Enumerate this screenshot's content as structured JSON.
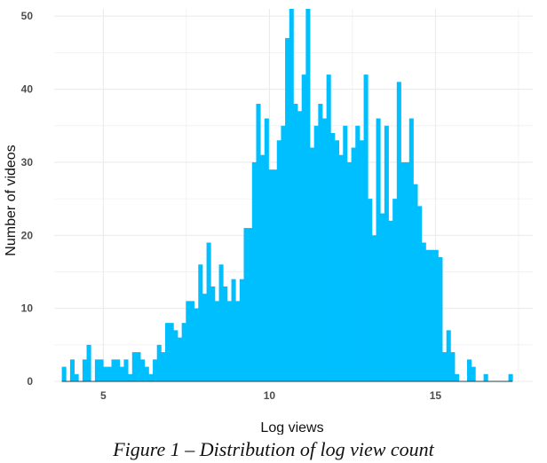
{
  "colors": {
    "bar": "#00bfff",
    "grid": "#ebebeb",
    "baseline": "#1f3f4a"
  },
  "caption": "Figure 1 – Distribution of log view count",
  "chart_data": {
    "type": "histogram",
    "xlabel": "Log views",
    "ylabel": "Number of videos",
    "x_ticks": [
      5,
      10,
      15
    ],
    "y_ticks": [
      0,
      10,
      20,
      30,
      40,
      50
    ],
    "xlim": [
      3.52,
      17.93
    ],
    "ylim": [
      0,
      51
    ],
    "grid": true,
    "bin_start": 3.75,
    "bin_width": 0.1245,
    "counts": [
      2,
      0,
      3,
      1,
      0,
      3,
      5,
      0,
      3,
      3,
      2,
      2,
      3,
      3,
      2,
      3,
      1,
      4,
      4,
      3,
      2,
      1,
      3,
      5,
      4,
      8,
      8,
      7,
      6,
      8,
      11,
      11,
      10,
      16,
      12,
      19,
      13,
      11,
      16,
      13,
      11,
      14,
      11,
      14,
      21,
      21,
      30,
      38,
      31,
      36,
      29,
      29,
      33,
      35,
      47,
      51,
      38,
      37,
      42,
      51,
      32,
      35,
      38,
      36,
      42,
      34,
      33,
      31,
      35,
      30,
      32,
      35,
      33,
      42,
      25,
      20,
      36,
      23,
      35,
      22,
      25,
      41,
      30,
      30,
      36,
      27,
      24,
      19,
      18,
      18,
      18,
      17,
      4,
      7,
      4,
      1,
      0,
      0,
      3,
      2,
      0,
      0,
      1,
      0,
      0,
      0,
      0,
      0,
      1
    ]
  }
}
